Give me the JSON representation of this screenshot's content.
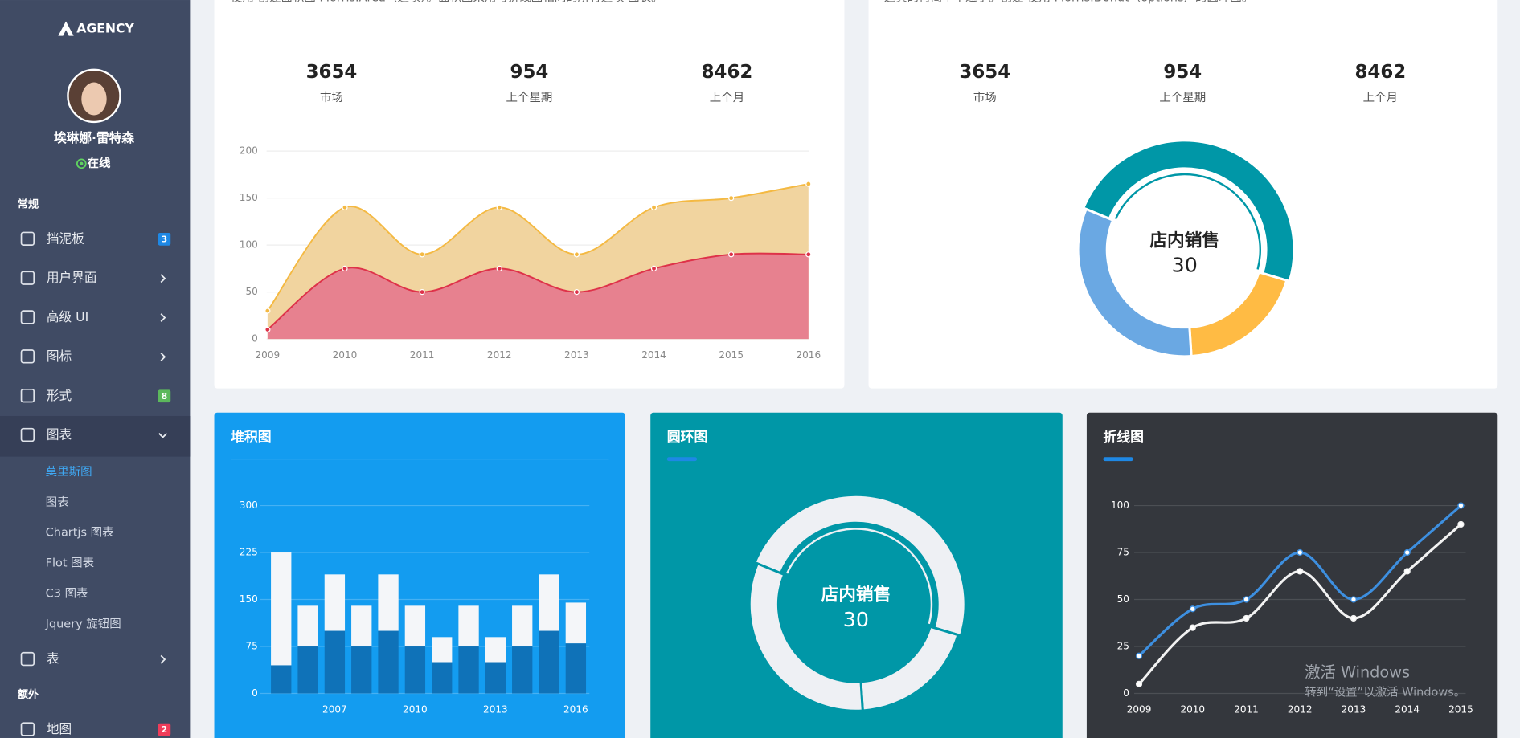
{
  "logo": "AGENCY",
  "user": {
    "name": "埃琳娜·雷特森",
    "status": "在线"
  },
  "nav": {
    "sections": [
      {
        "title": "常规",
        "items": [
          {
            "label": "挡泥板",
            "badge": 3,
            "badge_color": "#1e88e5"
          },
          {
            "label": "用户界面",
            "expandable": true
          },
          {
            "label": "高级 UI",
            "expandable": true
          },
          {
            "label": "图标",
            "expandable": true
          },
          {
            "label": "形式",
            "badge": 8,
            "badge_color": "#5cb85c"
          },
          {
            "label": "图表",
            "expandable": true,
            "children": [
              {
                "label": "莫里斯图",
                "active": true
              },
              {
                "label": "图表"
              },
              {
                "label": "Chartjs 图表"
              },
              {
                "label": "Flot 图表"
              },
              {
                "label": "C3 图表"
              },
              {
                "label": "Jquery 旋钮图"
              }
            ]
          },
          {
            "label": "表",
            "expandable": true
          }
        ]
      },
      {
        "title": "额外",
        "items": [
          {
            "label": "地图",
            "badge": 2,
            "badge_color": "#ef3c5a"
          }
        ]
      }
    ]
  },
  "panels": [
    {
      "description": "使用 创建面积图 Morris.Area（选项）。面积图采用与折线图相同的所有选项 图表。",
      "stats": [
        {
          "value": 3654,
          "label": "市场"
        },
        {
          "value": 954,
          "label": "上个星期"
        },
        {
          "value": 8462,
          "label": "上个月"
        }
      ]
    },
    {
      "description": "这真的再简单不过了。创建 使用 Morris.Donut（options）的圆环图。",
      "stats": [
        {
          "value": 3654,
          "label": "市场"
        },
        {
          "value": 954,
          "label": "上个星期"
        },
        {
          "value": 8462,
          "label": "上个月"
        }
      ]
    }
  ],
  "chart_data": [
    {
      "type": "area",
      "x": [
        2009,
        2010,
        2011,
        2012,
        2013,
        2014,
        2015,
        2016
      ],
      "xlim": [
        2009,
        2016
      ],
      "xticks": [
        2009,
        2010,
        2011,
        2012,
        2013,
        2014,
        2015,
        2016
      ],
      "ylim": [
        0,
        200
      ],
      "yticks": [
        0,
        50,
        100,
        150,
        200
      ],
      "grid": true,
      "series": [
        {
          "color": "#f4b942",
          "fill": "#f1d49f",
          "values": [
            30,
            140,
            90,
            140,
            90,
            140,
            150,
            165
          ]
        },
        {
          "color": "#de3249",
          "fill": "#e7818f",
          "values": [
            10,
            75,
            50,
            75,
            50,
            75,
            90,
            90
          ]
        }
      ]
    },
    {
      "type": "donut",
      "values": [
        30,
        12,
        20
      ],
      "colors": [
        "#0097a7",
        "#ffbb44",
        "#6aa8e3"
      ],
      "center_label": "店内销售"
    },
    {
      "type": "stacked_bar",
      "title": "堆积图",
      "categories": [
        null,
        null,
        "2007",
        null,
        null,
        "2010",
        null,
        null,
        "2013",
        null,
        null,
        "2016"
      ],
      "ylim": [
        0,
        300
      ],
      "yticks": [
        0,
        75,
        150,
        225,
        300
      ],
      "grid": true,
      "series": [
        {
          "color": "#0f72b8",
          "values": [
            45,
            75,
            100,
            75,
            100,
            75,
            50,
            75,
            50,
            75,
            100,
            80
          ]
        },
        {
          "color": "#f4f6f9",
          "values": [
            180,
            65,
            90,
            65,
            90,
            65,
            40,
            65,
            40,
            65,
            90,
            65
          ]
        }
      ]
    },
    {
      "type": "donut",
      "title": "圆环图",
      "values": [
        30,
        12,
        20
      ],
      "colors": [
        "#eef0f4",
        "#eef0f4",
        "#eef0f4"
      ],
      "center_label": "店内销售"
    },
    {
      "type": "line",
      "title": "折线图",
      "x": [
        2009,
        2010,
        2011,
        2012,
        2013,
        2014,
        2015
      ],
      "xlim": [
        2009,
        2015
      ],
      "xticks": [
        2009,
        2010,
        2011,
        2012,
        2013,
        2014,
        2015
      ],
      "ylim": [
        0,
        100
      ],
      "yticks": [
        0,
        25,
        50,
        75,
        100
      ],
      "grid": true,
      "series": [
        {
          "color": "#3d8fe0",
          "values": [
            20,
            45,
            50,
            75,
            50,
            75,
            100
          ]
        },
        {
          "color": "#f2f2f2",
          "values": [
            5,
            35,
            40,
            65,
            40,
            65,
            90
          ]
        }
      ]
    }
  ],
  "watermark": {
    "title": "激活 Windows",
    "text": "转到“设置”以激活 Windows。"
  }
}
